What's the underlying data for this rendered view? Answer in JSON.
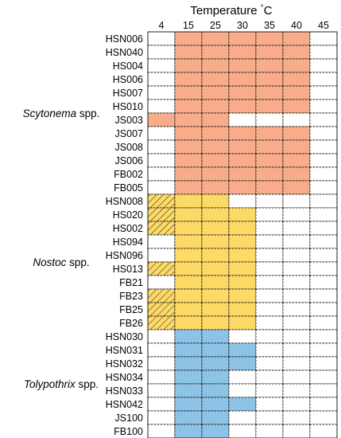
{
  "chart_data": {
    "type": "heatmap",
    "title": "Temperature",
    "title_unit": "°C",
    "columns": [
      "4",
      "15",
      "25",
      "30",
      "35",
      "40",
      "45"
    ],
    "groups": [
      {
        "name": "Scytonema",
        "suffix": " spp.",
        "color": "#f8ac8a",
        "row_start": 0,
        "row_count": 12
      },
      {
        "name": "Nostoc",
        "suffix": " spp.",
        "color": "#fdd965",
        "row_start": 12,
        "row_count": 10
      },
      {
        "name": "Tolypothrix",
        "suffix": " spp.",
        "color": "#8dc3e6",
        "row_start": 22,
        "row_count": 8
      }
    ],
    "legend_codes": {
      "0": "no growth",
      "1": "growth",
      "2": "hatched"
    },
    "rows": [
      {
        "label": "HSN006",
        "values": [
          0,
          1,
          1,
          1,
          1,
          1,
          0
        ]
      },
      {
        "label": "HSN040",
        "values": [
          0,
          1,
          1,
          1,
          1,
          1,
          0
        ]
      },
      {
        "label": "HS004",
        "values": [
          0,
          1,
          1,
          1,
          1,
          1,
          0
        ]
      },
      {
        "label": "HS006",
        "values": [
          0,
          1,
          1,
          1,
          1,
          1,
          0
        ]
      },
      {
        "label": "HS007",
        "values": [
          0,
          1,
          1,
          1,
          1,
          1,
          0
        ]
      },
      {
        "label": "HS010",
        "values": [
          0,
          1,
          1,
          1,
          1,
          1,
          0
        ]
      },
      {
        "label": "JS003",
        "values": [
          1,
          1,
          1,
          0,
          0,
          0,
          0
        ]
      },
      {
        "label": "JS007",
        "values": [
          0,
          1,
          1,
          1,
          1,
          1,
          0
        ]
      },
      {
        "label": "JS008",
        "values": [
          0,
          1,
          1,
          1,
          1,
          1,
          0
        ]
      },
      {
        "label": "JS006",
        "values": [
          0,
          1,
          1,
          1,
          1,
          1,
          0
        ]
      },
      {
        "label": "FB002",
        "values": [
          0,
          1,
          1,
          1,
          1,
          1,
          0
        ]
      },
      {
        "label": "FB005",
        "values": [
          0,
          1,
          1,
          1,
          1,
          1,
          0
        ]
      },
      {
        "label": "HSN008",
        "values": [
          2,
          1,
          1,
          0,
          0,
          0,
          0
        ]
      },
      {
        "label": "HS020",
        "values": [
          2,
          1,
          1,
          1,
          0,
          0,
          0
        ]
      },
      {
        "label": "HS002",
        "values": [
          2,
          1,
          1,
          1,
          0,
          0,
          0
        ]
      },
      {
        "label": "HS094",
        "values": [
          0,
          1,
          1,
          1,
          0,
          0,
          0
        ]
      },
      {
        "label": "HSN096",
        "values": [
          0,
          1,
          1,
          1,
          0,
          0,
          0
        ]
      },
      {
        "label": "HS013",
        "values": [
          2,
          1,
          1,
          1,
          0,
          0,
          0
        ]
      },
      {
        "label": "FB21",
        "values": [
          0,
          1,
          1,
          1,
          0,
          0,
          0
        ]
      },
      {
        "label": "FB23",
        "values": [
          2,
          1,
          1,
          1,
          0,
          0,
          0
        ]
      },
      {
        "label": "FB25",
        "values": [
          2,
          1,
          1,
          1,
          0,
          0,
          0
        ]
      },
      {
        "label": "FB26",
        "values": [
          2,
          1,
          1,
          1,
          0,
          0,
          0
        ]
      },
      {
        "label": "HSN030",
        "values": [
          0,
          1,
          1,
          0,
          0,
          0,
          0
        ]
      },
      {
        "label": "HSN031",
        "values": [
          0,
          1,
          1,
          1,
          0,
          0,
          0
        ]
      },
      {
        "label": "HSN032",
        "values": [
          0,
          1,
          1,
          1,
          0,
          0,
          0
        ]
      },
      {
        "label": "HSN034",
        "values": [
          0,
          1,
          1,
          0,
          0,
          0,
          0
        ]
      },
      {
        "label": "HSN033",
        "values": [
          0,
          1,
          1,
          0,
          0,
          0,
          0
        ]
      },
      {
        "label": "HSN042",
        "values": [
          0,
          1,
          1,
          1,
          0,
          0,
          0
        ]
      },
      {
        "label": "JS100",
        "values": [
          0,
          1,
          1,
          0,
          0,
          0,
          0
        ]
      },
      {
        "label": "FB100",
        "values": [
          0,
          1,
          1,
          0,
          0,
          0,
          0
        ]
      }
    ]
  }
}
